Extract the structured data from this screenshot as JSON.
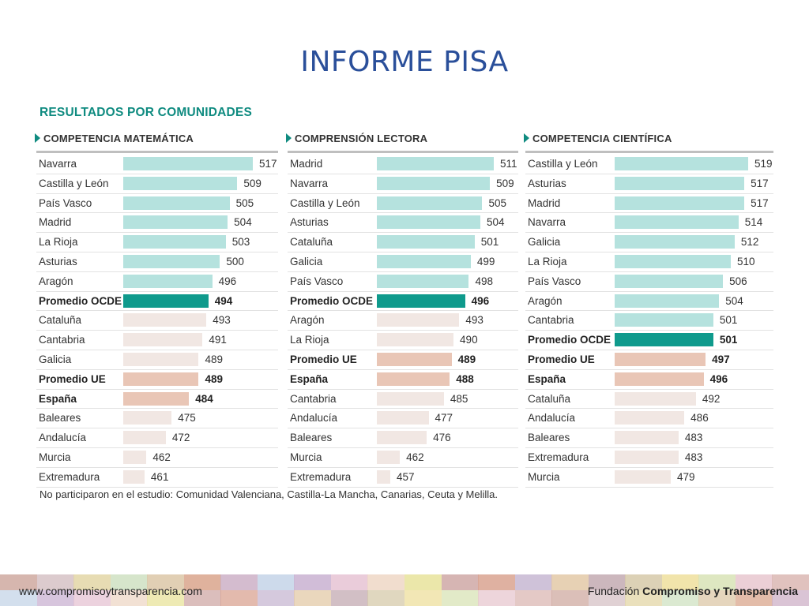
{
  "slide_title": "INFORME PISA",
  "section_title": "RESULTADOS POR COMUNIDADES",
  "footnote": "No participaron en el estudio: Comunidad Valenciana, Castilla-La Mancha, Canarias, Ceuta y Melilla.",
  "footer": {
    "url": "www.compromisoytransparencia.com",
    "org_prefix": "Fundación ",
    "org_bold": "Compromiso y Transparencia"
  },
  "colors": {
    "region": "#b5e2de",
    "ocde": "#0f9a8c",
    "ue_espana": "#e9c6b6",
    "below": "#f1e7e3",
    "title": "#2a4f9a",
    "accent": "#0f8b80"
  },
  "footer_band_colors": [
    "#cfa9a0",
    "#d6c2c6",
    "#e3d6a6",
    "#cfe1c2",
    "#dcc7a7",
    "#d9a58c",
    "#cdb0c7",
    "#c4d4e7",
    "#c9b2d1",
    "#e6c3d3",
    "#eed7c5",
    "#e8e39b",
    "#cfa8a6",
    "#d9a391",
    "#c7b7d2",
    "#e3c9a7",
    "#c3aab1",
    "#d6c9a9",
    "#eedf9c",
    "#d8e3b6",
    "#e7c7cf",
    "#dbb7b3"
  ],
  "chart_data": [
    {
      "type": "bar",
      "orientation": "horizontal",
      "title": "COMPETENCIA MATEMÁTICA",
      "categories": [
        "Navarra",
        "Castilla y León",
        "País Vasco",
        "Madrid",
        "La Rioja",
        "Asturias",
        "Aragón",
        "Promedio OCDE",
        "Cataluña",
        "Cantabria",
        "Galicia",
        "Promedio UE",
        "España",
        "Baleares",
        "Andalucía",
        "Murcia",
        "Extremadura"
      ],
      "values": [
        517,
        509,
        505,
        504,
        503,
        500,
        496,
        494,
        493,
        491,
        489,
        489,
        484,
        475,
        472,
        462,
        461
      ],
      "categories_kind": [
        "region",
        "region",
        "region",
        "region",
        "region",
        "region",
        "region",
        "ocde",
        "below",
        "below",
        "below",
        "ue",
        "espana",
        "below",
        "below",
        "below",
        "below"
      ]
    },
    {
      "type": "bar",
      "orientation": "horizontal",
      "title": "COMPRENSIÓN LECTORA",
      "categories": [
        "Madrid",
        "Navarra",
        "Castilla y León",
        "Asturias",
        "Cataluña",
        "Galicia",
        "País Vasco",
        "Promedio OCDE",
        "Aragón",
        "La Rioja",
        "Promedio UE",
        "España",
        "Cantabria",
        "Andalucía",
        "Baleares",
        "Murcia",
        "Extremadura"
      ],
      "values": [
        511,
        509,
        505,
        504,
        501,
        499,
        498,
        496,
        493,
        490,
        489,
        488,
        485,
        477,
        476,
        462,
        457
      ],
      "categories_kind": [
        "region",
        "region",
        "region",
        "region",
        "region",
        "region",
        "region",
        "ocde",
        "below",
        "below",
        "ue",
        "espana",
        "below",
        "below",
        "below",
        "below",
        "below"
      ]
    },
    {
      "type": "bar",
      "orientation": "horizontal",
      "title": "COMPETENCIA CIENTÍFICA",
      "categories": [
        "Castilla y León",
        "Asturias",
        "Madrid",
        "Navarra",
        "Galicia",
        "La Rioja",
        "País Vasco",
        "Aragón",
        "Cantabria",
        "Promedio OCDE",
        "Promedio UE",
        "España",
        "Cataluña",
        "Andalucía",
        "Baleares",
        "Extremadura",
        "Murcia"
      ],
      "values": [
        519,
        517,
        517,
        514,
        512,
        510,
        506,
        504,
        501,
        501,
        497,
        496,
        492,
        486,
        483,
        483,
        479
      ],
      "categories_kind": [
        "region",
        "region",
        "region",
        "region",
        "region",
        "region",
        "region",
        "region",
        "region",
        "ocde",
        "ue",
        "espana",
        "below",
        "below",
        "below",
        "below",
        "below"
      ]
    }
  ]
}
